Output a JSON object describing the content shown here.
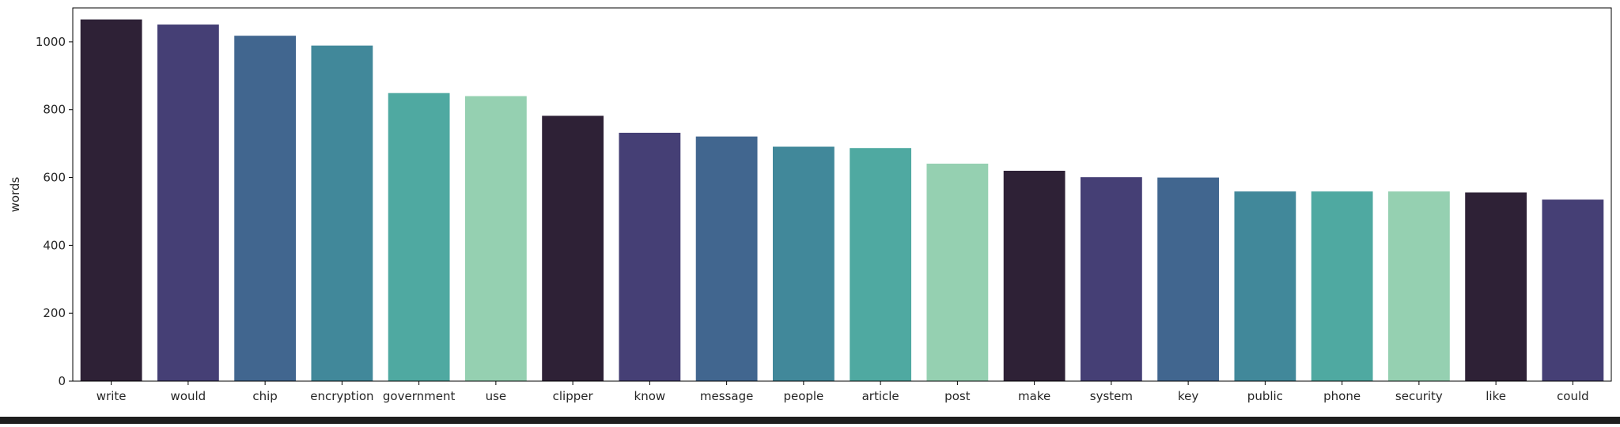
{
  "chart_data": {
    "type": "bar",
    "title": "",
    "xlabel": "",
    "ylabel": "words",
    "ylim": [
      0,
      1100
    ],
    "yticks": [
      0,
      200,
      400,
      600,
      800,
      1000
    ],
    "grid": false,
    "legend": "none",
    "categories": [
      "write",
      "would",
      "chip",
      "encryption",
      "government",
      "use",
      "clipper",
      "know",
      "message",
      "people",
      "article",
      "post",
      "make",
      "system",
      "key",
      "public",
      "phone",
      "security",
      "like",
      "could"
    ],
    "values": [
      1066,
      1051,
      1018,
      989,
      849,
      840,
      782,
      732,
      721,
      691,
      687,
      641,
      620,
      601,
      600,
      559,
      559,
      559,
      556,
      535
    ],
    "colors": [
      "#2e2136",
      "#453f75",
      "#41668f",
      "#41889a",
      "#4fa9a1",
      "#95d0b1"
    ]
  }
}
